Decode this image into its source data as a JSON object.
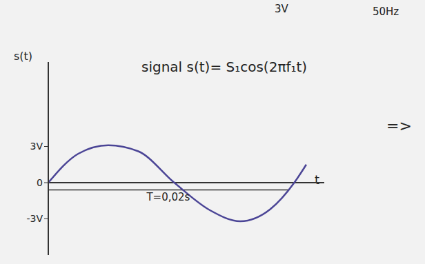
{
  "chart_data": {
    "type": "line",
    "title": "signal s(t)= S₁cos(2πf₁t)",
    "annotations": [
      {
        "text": "3V"
      },
      {
        "text": "50Hz"
      },
      {
        "text": "=>"
      }
    ],
    "x_label": "t",
    "y_label": "s(t)",
    "x": [
      0,
      0.0025,
      0.005,
      0.0075,
      0.0105,
      0.0135,
      0.016,
      0.0185,
      0.0205,
      0.0215
    ],
    "values": [
      0,
      2.4,
      3.1,
      2.6,
      0,
      -2.3,
      -3.2,
      -2.2,
      0,
      1.5
    ],
    "color": "#4b4596",
    "xlim": [
      0,
      0.023
    ],
    "ylim": [
      -6,
      10
    ],
    "yticks": [
      {
        "value": 3,
        "label": "3V"
      },
      0,
      {
        "value": -3,
        "label": "-3V"
      }
    ],
    "period": {
      "value": 0.02,
      "label": "T=0,02s"
    },
    "grid": false,
    "tick_labels": "y"
  }
}
